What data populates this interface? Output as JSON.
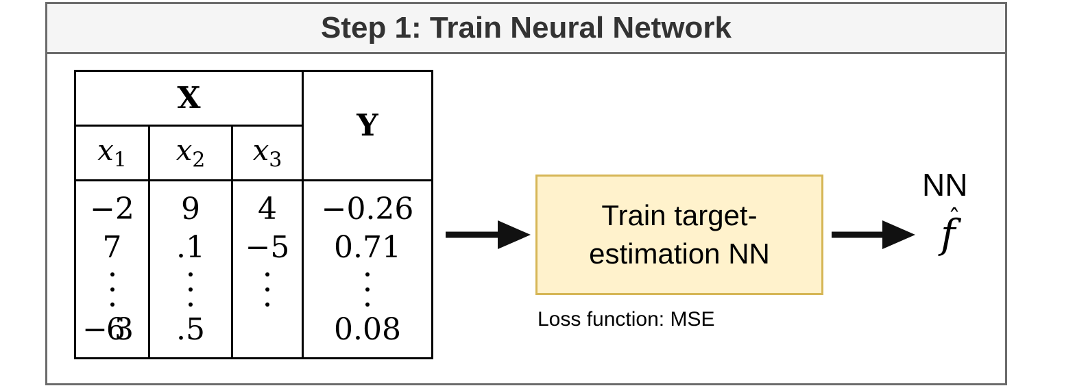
{
  "header": {
    "title": "Step 1: Train Neural Network"
  },
  "table": {
    "x_group_label": "X",
    "y_label": "Y",
    "feature_columns": [
      {
        "name": "x",
        "sub": "1",
        "values": [
          "−2",
          "7"
        ],
        "last": "−6",
        "last_overlay": "3"
      },
      {
        "name": "x",
        "sub": "2",
        "values": [
          "9",
          ".1"
        ],
        "last": ".5"
      },
      {
        "name": "x",
        "sub": "3",
        "values": [
          "4",
          "−5"
        ]
      }
    ],
    "target_column": {
      "values": [
        "−0.26",
        "0.71"
      ],
      "last": "0.08"
    }
  },
  "process": {
    "line1": "Train target-",
    "line2": "estimation NN",
    "loss_text": "Loss function: MSE",
    "fill_color": "#fff2cc",
    "border_color": "#d6b656"
  },
  "output": {
    "label": "NN",
    "symbol": "f",
    "accent": "ˆ"
  },
  "colors": {
    "frame_border": "#6b6b6b",
    "header_bg": "#f5f5f5",
    "title_text": "#333333",
    "arrow": "#111111"
  }
}
